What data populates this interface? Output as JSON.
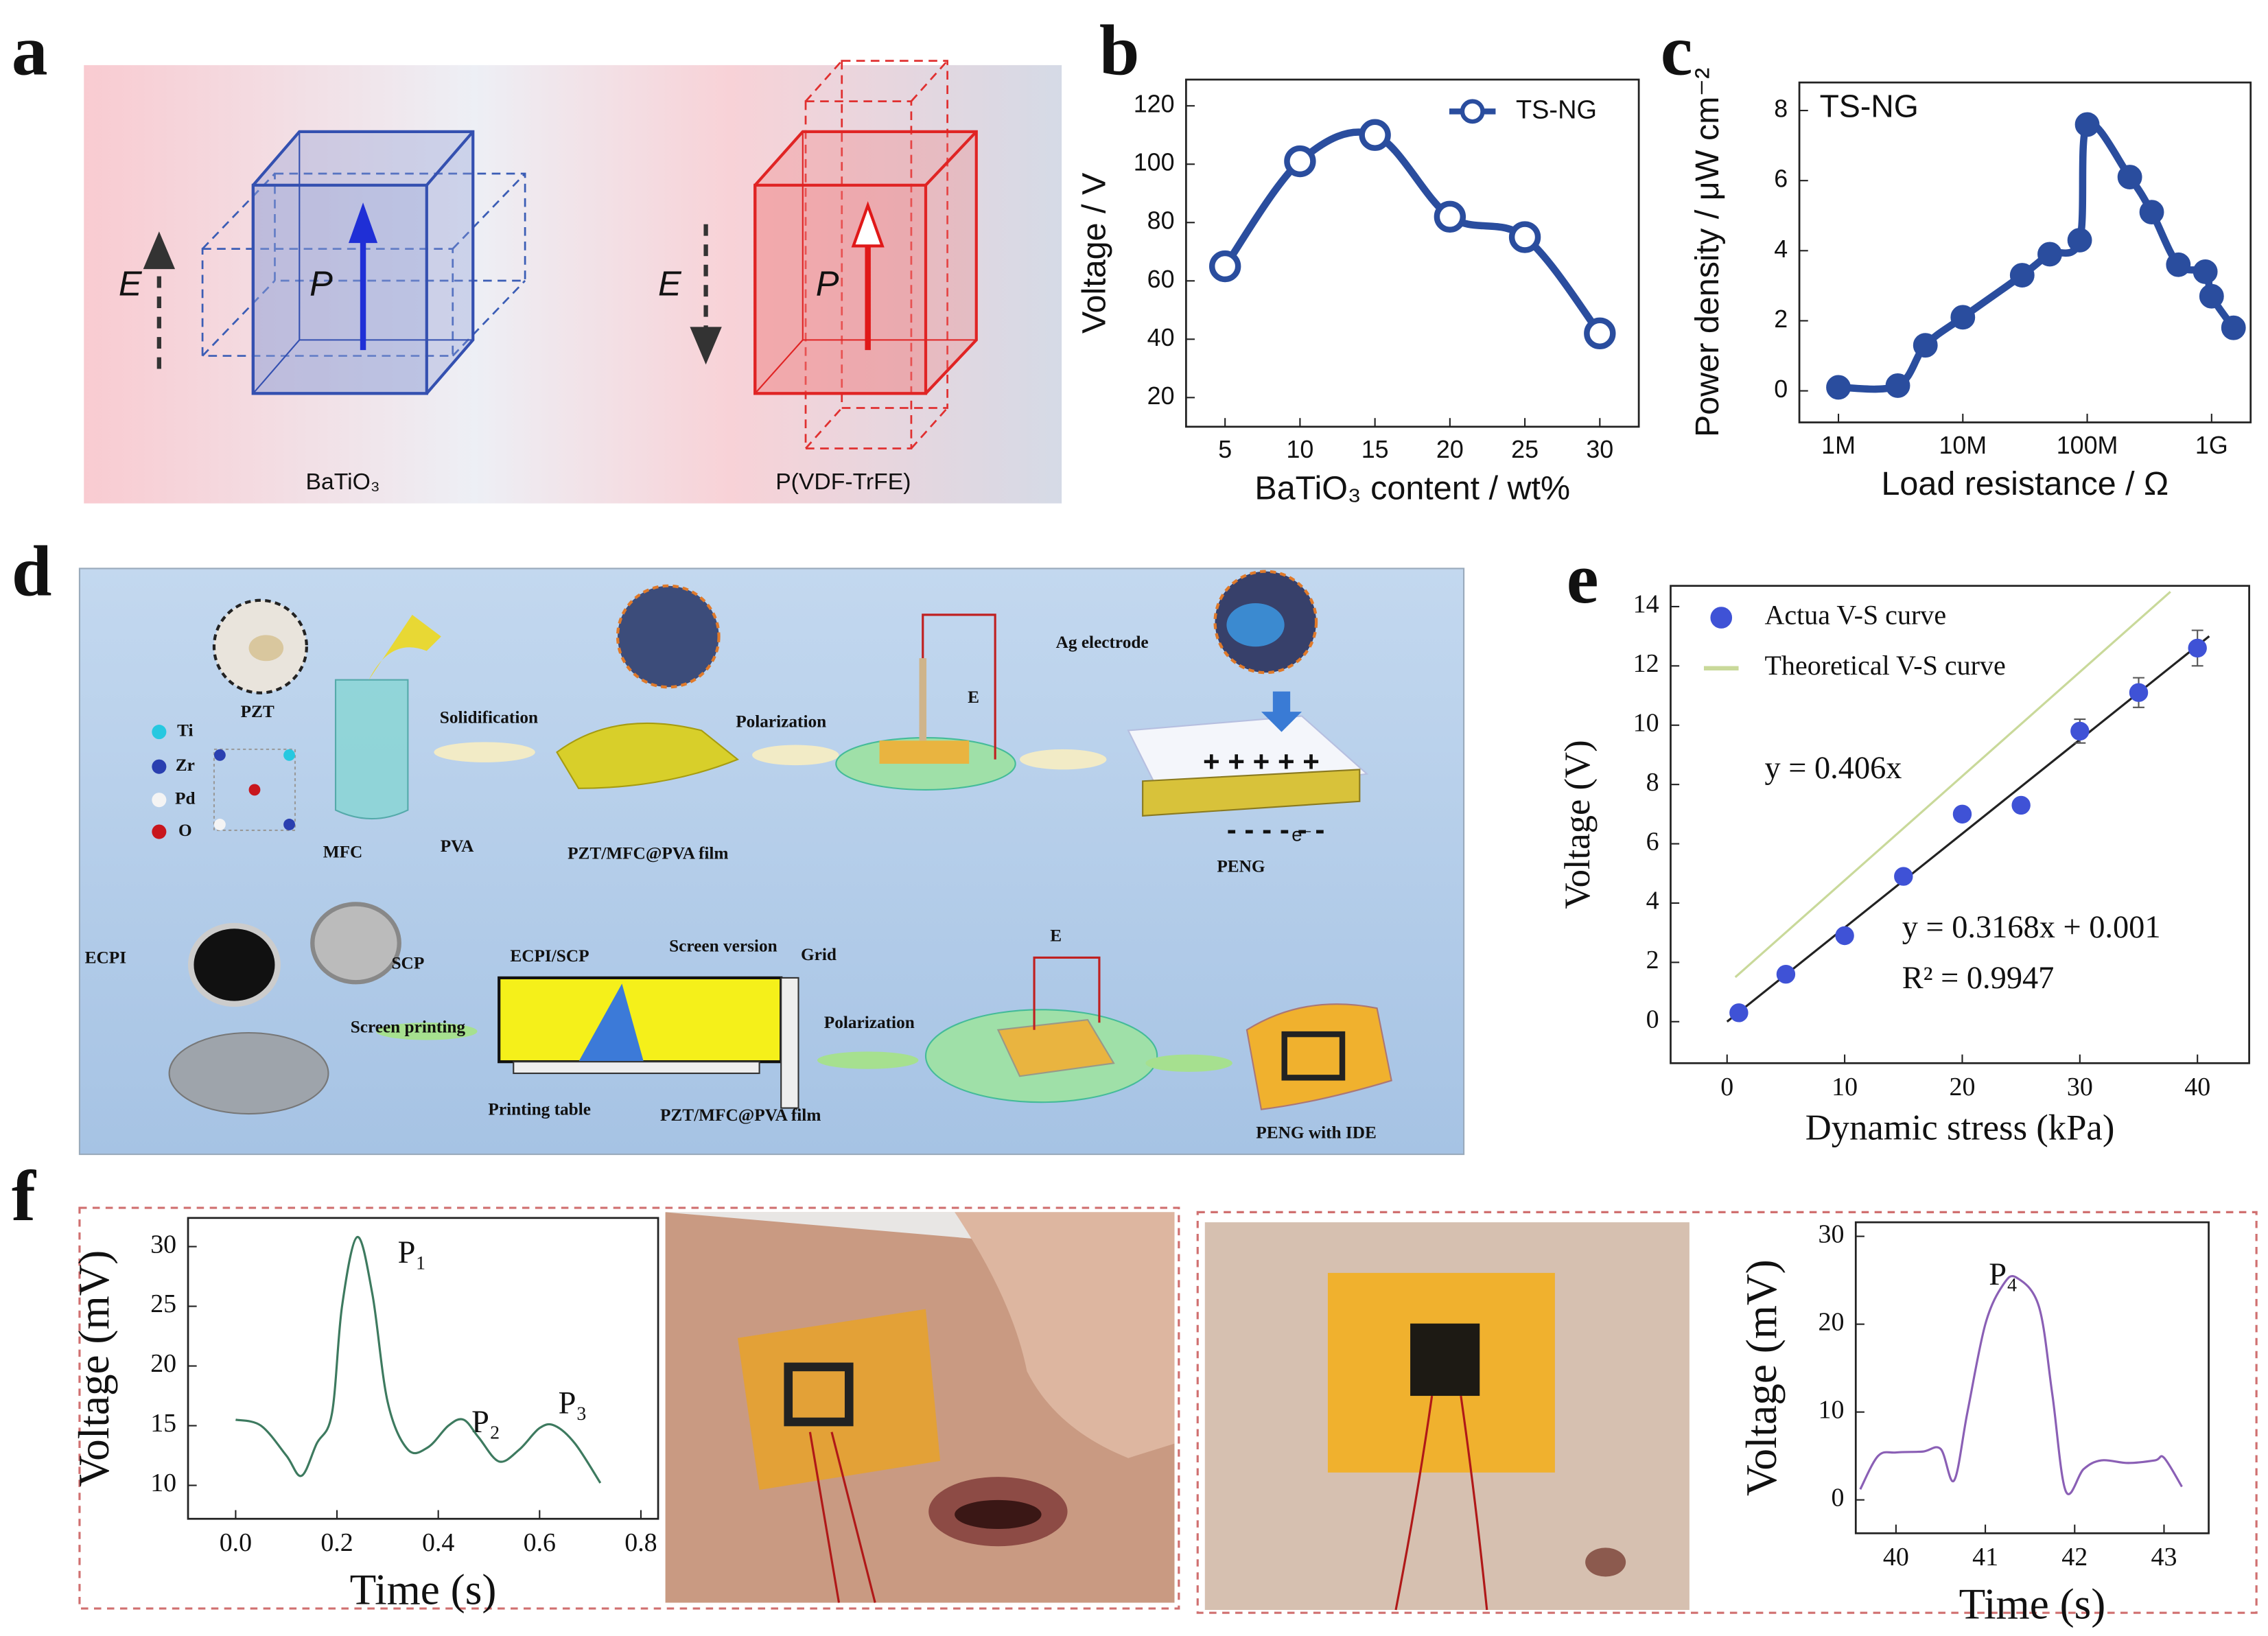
{
  "panel_labels": [
    "a",
    "b",
    "c",
    "d",
    "e",
    "f"
  ],
  "panel_a": {
    "left_field": "E",
    "left_polarization": "P",
    "left_material": "BaTiO₃",
    "right_field": "E",
    "right_polarization": "P",
    "right_material": "P(VDF-TrFE)"
  },
  "panel_d": {
    "labels": [
      "PZT",
      "Ti",
      "Zr",
      "Pd",
      "O",
      "Solidification",
      "MFC",
      "PVA",
      "PZT/MFC@PVA film",
      "Polarization",
      "E",
      "Ag electrode",
      "PENG",
      "ECPI",
      "SCP",
      "Screen printing",
      "ECPI/SCP",
      "Screen version",
      "Grid",
      "Printing table",
      "PZT/MFC@PVA film",
      "Polarization",
      "E",
      "PENG with IDE"
    ],
    "plus_signs": "+ + + + +",
    "minus_signs": "- - - - - -",
    "electron": "e⁻"
  },
  "chart_data": [
    {
      "type": "line",
      "xlabel": "BaTiO₃ content / wt%",
      "ylabel": "Voltage / V",
      "xlim": [
        2.4,
        32.6
      ],
      "ylim": [
        10,
        129
      ],
      "xticks": [
        5,
        10,
        15,
        20,
        25,
        30
      ],
      "yticks": [
        20,
        40,
        60,
        80,
        100,
        120
      ],
      "legend": "upper right",
      "marker": "open",
      "series": [
        {
          "name": "TS-NG",
          "color": "#2a4d9e",
          "x": [
            5,
            10,
            15,
            20,
            25,
            30
          ],
          "values": [
            65,
            101,
            110,
            82,
            75,
            42
          ]
        }
      ]
    },
    {
      "type": "line",
      "xlabel": "Load resistance / Ω",
      "ylabel": "Power density / μW cm⁻²",
      "annotation": "TS-NG",
      "xscale": "log",
      "xlim": [
        485000,
        2060000000
      ],
      "ylim": [
        -0.9,
        8.8
      ],
      "xticks": [
        {
          "value": 1000000,
          "label": "1M"
        },
        {
          "value": 10000000,
          "label": "10M"
        },
        {
          "value": 100000000,
          "label": "100M"
        },
        {
          "value": 1000000000,
          "label": "1G"
        }
      ],
      "yticks": [
        0,
        2,
        4,
        6,
        8
      ],
      "marker": "filled",
      "series": [
        {
          "color": "#2a4d9e",
          "x": [
            1000000,
            3000000,
            5000000,
            10000000,
            30000000,
            50000000,
            87000000,
            100000000,
            220000000,
            330000000,
            540000000,
            890000000,
            1000000000,
            1500000000
          ],
          "values": [
            0.1,
            0.15,
            1.3,
            2.1,
            3.3,
            3.9,
            4.3,
            7.6,
            6.1,
            5.1,
            3.6,
            3.4,
            2.7,
            1.8
          ]
        }
      ]
    },
    {
      "type": "scatter",
      "xlabel": "Dynamic stress (kPa)",
      "ylabel": "Voltage (V)",
      "xlim": [
        -4.8,
        44.4
      ],
      "ylim": [
        -1.4,
        14.7
      ],
      "xticks": [
        0,
        10,
        20,
        30,
        40
      ],
      "yticks": [
        0,
        2,
        4,
        6,
        8,
        10,
        12,
        14
      ],
      "legend": "upper left",
      "annotations": [
        "y = 0.406x",
        "y = 0.3168x + 0.001",
        "R² = 0.9947"
      ],
      "series": [
        {
          "name": "Actua V-S curve",
          "color": "#3f52d6",
          "x": [
            1,
            5,
            10,
            15,
            20,
            25,
            30,
            35,
            40
          ],
          "values": [
            0.3,
            1.6,
            2.9,
            4.9,
            7.0,
            7.3,
            9.8,
            11.1,
            12.6
          ],
          "errors": [
            0.1,
            0.1,
            0.1,
            0.1,
            0.2,
            0.2,
            0.4,
            0.5,
            0.6
          ]
        },
        {
          "name": "Theoretical V-S curve",
          "color": "#c9d99a",
          "x": [
            0.7,
            37.7
          ],
          "values": [
            1.5,
            14.5
          ]
        }
      ],
      "fit": {
        "color": "#222222",
        "x": [
          0,
          41
        ],
        "values": [
          0.001,
          13.0
        ]
      }
    },
    {
      "type": "line",
      "xlabel": "Time (s)",
      "ylabel": "Voltage (mV)",
      "xlim": [
        -0.094,
        0.834
      ],
      "ylim": [
        7.2,
        32.4
      ],
      "xticks": [
        {
          "value": 0,
          "label": "0.0"
        },
        0.2,
        0.4,
        0.6,
        0.8
      ],
      "yticks": [
        10,
        15,
        20,
        25,
        30
      ],
      "annotations": [
        "P₁",
        "P₂",
        "P₃"
      ],
      "series": [
        {
          "color": "#3d7a5f",
          "x": [
            0,
            0.05,
            0.1,
            0.13,
            0.16,
            0.19,
            0.21,
            0.24,
            0.27,
            0.3,
            0.34,
            0.38,
            0.42,
            0.45,
            0.48,
            0.52,
            0.56,
            0.6,
            0.63,
            0.67,
            0.72
          ],
          "values": [
            15.5,
            15,
            12.5,
            10.8,
            13.5,
            16,
            25,
            30.8,
            26,
            17,
            13,
            13.2,
            15,
            15.5,
            14,
            12,
            13,
            14.8,
            15,
            13.5,
            10.2
          ]
        }
      ]
    },
    {
      "type": "line",
      "xlabel": "Time (s)",
      "ylabel": "Voltage (mV)",
      "xlim": [
        39.55,
        43.5
      ],
      "ylim": [
        -3.8,
        31.6
      ],
      "xticks": [
        40,
        41,
        42,
        43
      ],
      "yticks": [
        0,
        10,
        20,
        30
      ],
      "annotations": [
        "P₄"
      ],
      "series": [
        {
          "color": "#8a5fb5",
          "x": [
            39.6,
            39.8,
            40.0,
            40.3,
            40.5,
            40.65,
            40.8,
            41.0,
            41.2,
            41.35,
            41.6,
            41.75,
            41.9,
            42.1,
            42.3,
            42.6,
            42.9,
            43.0,
            43.2
          ],
          "values": [
            1.2,
            5,
            5.4,
            5.5,
            5.8,
            2.2,
            10,
            20,
            24.5,
            25.3,
            22,
            12,
            1,
            3.5,
            4.5,
            4.2,
            4.5,
            4.8,
            1.5
          ]
        }
      ]
    }
  ]
}
